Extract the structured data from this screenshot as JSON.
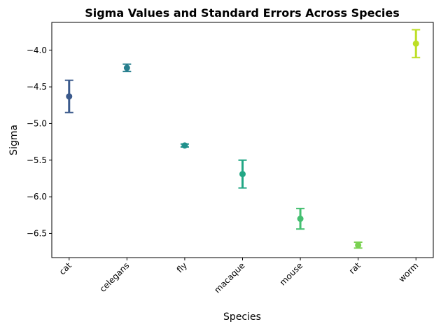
{
  "chart_data": {
    "type": "scatter",
    "title": "Sigma Values and Standard Errors Across Species",
    "xlabel": "Species",
    "ylabel": "Sigma",
    "categories": [
      "cat",
      "celegans",
      "fly",
      "macaque",
      "mouse",
      "rat",
      "worm"
    ],
    "values": [
      -4.63,
      -4.24,
      -5.3,
      -5.69,
      -6.3,
      -6.66,
      -3.91
    ],
    "errors": [
      0.22,
      0.05,
      0.02,
      0.19,
      0.14,
      0.04,
      0.19
    ],
    "colors": [
      "#3b5a8c",
      "#277f8e",
      "#21918c",
      "#22a785",
      "#44bf70",
      "#7ad151",
      "#bddf26"
    ],
    "ylim": [
      -6.83,
      -3.62
    ],
    "yticks": [
      -6.5,
      -6.0,
      -5.5,
      -5.0,
      -4.5,
      -4.0
    ],
    "ytick_labels": [
      "−6.5",
      "−6.0",
      "−5.5",
      "−5.0",
      "−4.5",
      "−4.0"
    ],
    "grid": false,
    "legend": "none"
  }
}
